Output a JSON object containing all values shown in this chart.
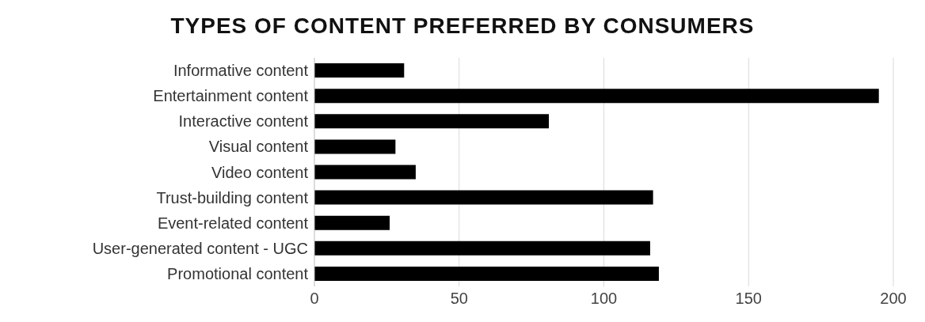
{
  "chart_data": {
    "type": "bar",
    "orientation": "horizontal",
    "title": "TYPES OF CONTENT PREFERRED BY CONSUMERS",
    "categories": [
      "Informative content",
      "Entertainment content",
      "Interactive content",
      "Visual content",
      "Video content",
      "Trust-building content",
      "Event-related content",
      "User-generated content - UGC",
      "Promotional content"
    ],
    "values": [
      31,
      195,
      81,
      28,
      35,
      117,
      26,
      116,
      119
    ],
    "color": "#000000",
    "xlim": [
      0,
      200
    ],
    "xticks": [
      0,
      50,
      100,
      150,
      200
    ],
    "grid": "x"
  }
}
